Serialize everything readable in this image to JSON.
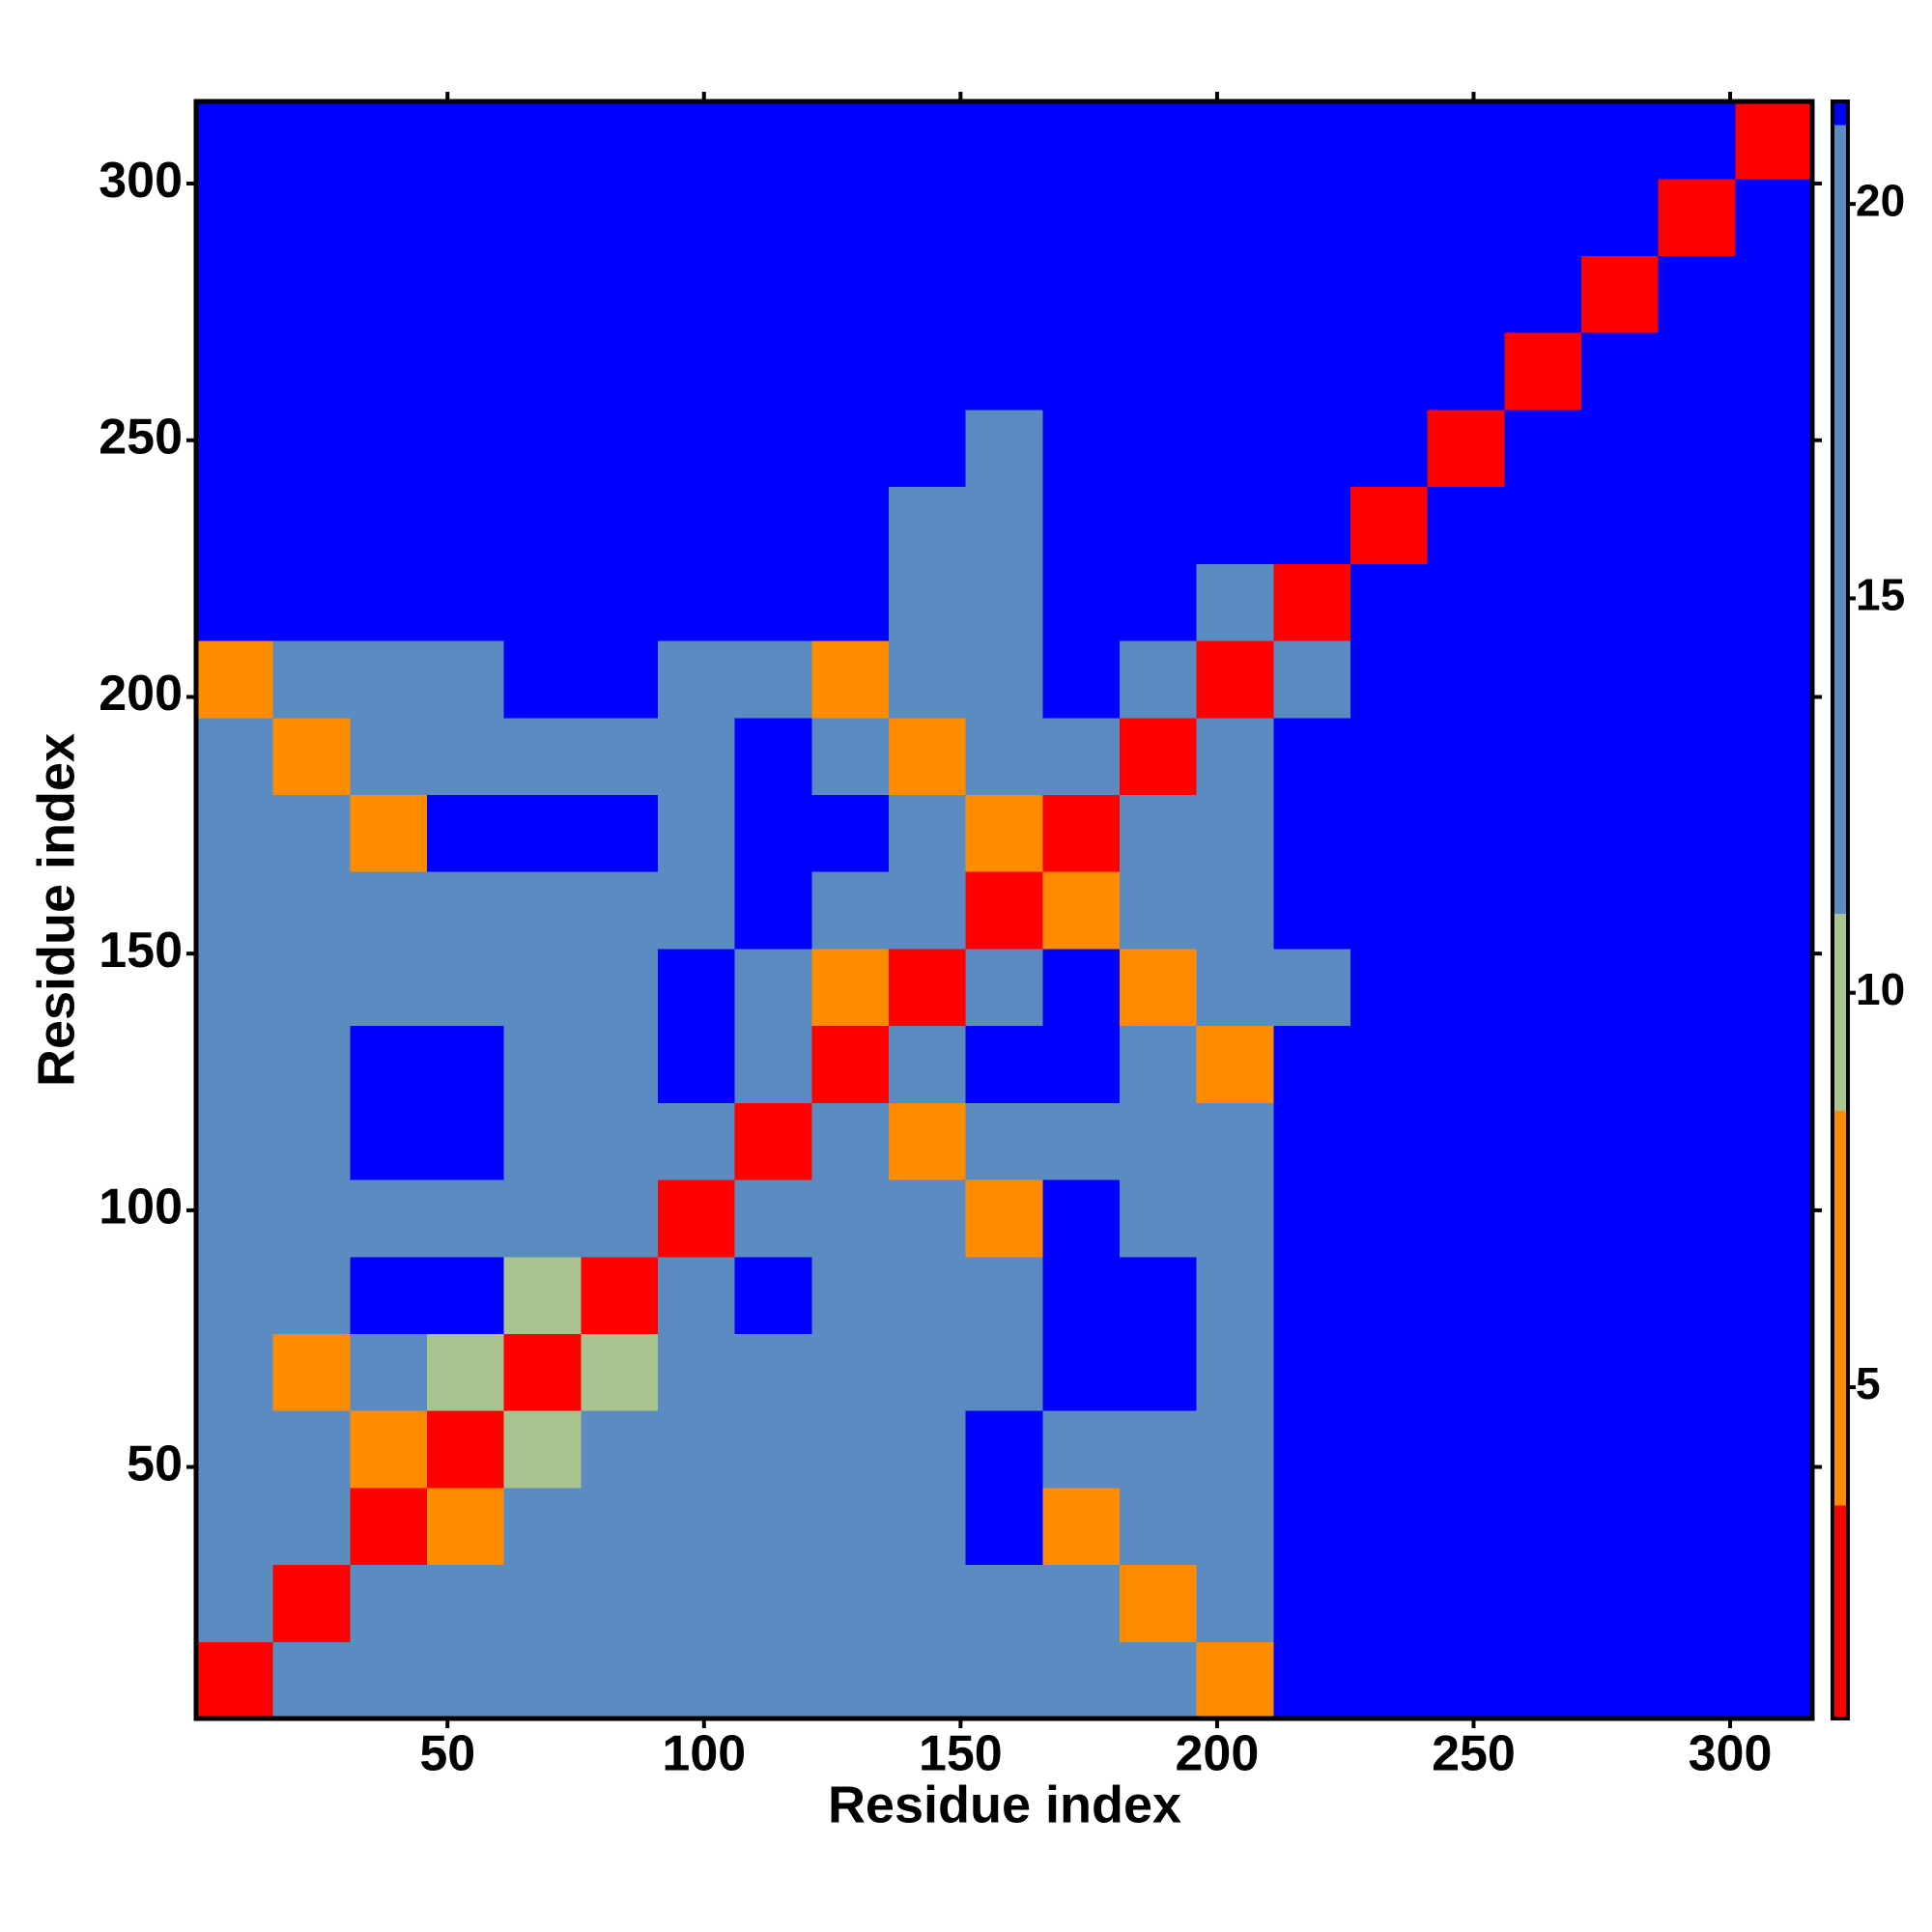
{
  "chart_data": {
    "type": "heatmap",
    "xlabel": "Residue index",
    "ylabel": "Residue index",
    "x_bins": [
      1,
      16,
      31,
      46,
      61,
      76,
      91,
      106,
      121,
      136,
      151,
      166,
      181,
      196,
      211,
      226,
      241,
      256,
      271,
      286,
      301,
      316
    ],
    "y_bins": [
      1,
      16,
      31,
      46,
      61,
      76,
      91,
      106,
      121,
      136,
      151,
      166,
      181,
      196,
      211,
      226,
      241,
      256,
      271,
      286,
      301,
      316
    ],
    "xlim": [
      1,
      316
    ],
    "ylim": [
      1,
      316
    ],
    "xticks": [
      50,
      100,
      150,
      200,
      250,
      300
    ],
    "yticks": [
      50,
      100,
      150,
      200,
      250,
      300
    ],
    "zlim": [
      0.8,
      21.3
    ],
    "zticks": [
      5,
      10,
      15,
      20
    ],
    "color_bands": [
      [
        3.5,
        "#ff0000"
      ],
      [
        8.5,
        "#ff8c00"
      ],
      [
        11,
        "#a9c48f"
      ],
      [
        21,
        "#5b8cc1"
      ],
      [
        21.3,
        "#0000ff"
      ]
    ],
    "z": [
      [
        2,
        15,
        15,
        15,
        15,
        15,
        15,
        15,
        15,
        15,
        15,
        15,
        15,
        7,
        21.2,
        21.2,
        21.2,
        21.2,
        21.2,
        21.2,
        21.2
      ],
      [
        15,
        2,
        15,
        15,
        15,
        15,
        15,
        15,
        15,
        15,
        15,
        15,
        7,
        15,
        21.2,
        21.2,
        21.2,
        21.2,
        21.2,
        21.2,
        21.2
      ],
      [
        15,
        15,
        2,
        7,
        15,
        15,
        15,
        15,
        15,
        15,
        21.2,
        7,
        15,
        15,
        21.2,
        21.2,
        21.2,
        21.2,
        21.2,
        21.2,
        21.2
      ],
      [
        15,
        15,
        7,
        2,
        10,
        15,
        15,
        15,
        15,
        15,
        21.2,
        15,
        15,
        15,
        21.2,
        21.2,
        21.2,
        21.2,
        21.2,
        21.2,
        21.2
      ],
      [
        15,
        7,
        15,
        10,
        2,
        10,
        15,
        15,
        15,
        15,
        15,
        21.2,
        21.2,
        15,
        21.2,
        21.2,
        21.2,
        21.2,
        21.2,
        21.2,
        21.2
      ],
      [
        15,
        15,
        21.2,
        21.2,
        10,
        2,
        15,
        21.2,
        15,
        15,
        15,
        21.2,
        21.2,
        15,
        21.2,
        21.2,
        21.2,
        21.2,
        21.2,
        21.2,
        21.2
      ],
      [
        15,
        15,
        15,
        15,
        15,
        15,
        2,
        15,
        15,
        15,
        7,
        21.2,
        15,
        15,
        21.2,
        21.2,
        21.2,
        21.2,
        21.2,
        21.2,
        21.2
      ],
      [
        15,
        15,
        21.2,
        21.2,
        15,
        15,
        15,
        2,
        15,
        7,
        15,
        15,
        15,
        15,
        21.2,
        21.2,
        21.2,
        21.2,
        21.2,
        21.2,
        21.2
      ],
      [
        15,
        15,
        21.2,
        21.2,
        15,
        15,
        21.2,
        15,
        2,
        15,
        21.2,
        21.2,
        15,
        7,
        21.2,
        21.2,
        21.2,
        21.2,
        21.2,
        21.2,
        21.2
      ],
      [
        15,
        15,
        15,
        15,
        15,
        15,
        21.2,
        15,
        7,
        2,
        15,
        21.2,
        7,
        15,
        15,
        21.2,
        21.2,
        21.2,
        21.2,
        21.2,
        21.2
      ],
      [
        15,
        15,
        15,
        15,
        15,
        15,
        15,
        21.2,
        15,
        15,
        2,
        7,
        15,
        15,
        21.2,
        21.2,
        21.2,
        21.2,
        21.2,
        21.2,
        21.2
      ],
      [
        15,
        15,
        7,
        21.2,
        21.2,
        21.2,
        15,
        21.2,
        21.2,
        15,
        7,
        2,
        15,
        15,
        21.2,
        21.2,
        21.2,
        21.2,
        21.2,
        21.2,
        21.2
      ],
      [
        15,
        7,
        15,
        15,
        15,
        15,
        15,
        21.2,
        15,
        7,
        15,
        15,
        2,
        15,
        21.2,
        21.2,
        21.2,
        21.2,
        21.2,
        21.2,
        21.2
      ],
      [
        7,
        15,
        15,
        15,
        21.2,
        21.2,
        15,
        15,
        7,
        15,
        15,
        21.2,
        15,
        2,
        15,
        21.2,
        21.2,
        21.2,
        21.2,
        21.2,
        21.2
      ],
      [
        21.2,
        21.2,
        21.2,
        21.2,
        21.2,
        21.2,
        21.2,
        21.2,
        21.2,
        15,
        15,
        21.2,
        21.2,
        15,
        2,
        21.2,
        21.2,
        21.2,
        21.2,
        21.2,
        21.2
      ],
      [
        21.2,
        21.2,
        21.2,
        21.2,
        21.2,
        21.2,
        21.2,
        21.2,
        21.2,
        15,
        15,
        21.2,
        21.2,
        21.2,
        21.2,
        2,
        21.2,
        21.2,
        21.2,
        21.2,
        21.2
      ],
      [
        21.2,
        21.2,
        21.2,
        21.2,
        21.2,
        21.2,
        21.2,
        21.2,
        21.2,
        21.2,
        15,
        21.2,
        21.2,
        21.2,
        21.2,
        21.2,
        2,
        21.2,
        21.2,
        21.2,
        21.2
      ],
      [
        21.2,
        21.2,
        21.2,
        21.2,
        21.2,
        21.2,
        21.2,
        21.2,
        21.2,
        21.2,
        21.2,
        21.2,
        21.2,
        21.2,
        21.2,
        21.2,
        21.2,
        2,
        21.2,
        21.2,
        21.2
      ],
      [
        21.2,
        21.2,
        21.2,
        21.2,
        21.2,
        21.2,
        21.2,
        21.2,
        21.2,
        21.2,
        21.2,
        21.2,
        21.2,
        21.2,
        21.2,
        21.2,
        21.2,
        21.2,
        2,
        21.2,
        21.2
      ],
      [
        21.2,
        21.2,
        21.2,
        21.2,
        21.2,
        21.2,
        21.2,
        21.2,
        21.2,
        21.2,
        21.2,
        21.2,
        21.2,
        21.2,
        21.2,
        21.2,
        21.2,
        21.2,
        21.2,
        2,
        21.2
      ],
      [
        21.2,
        21.2,
        21.2,
        21.2,
        21.2,
        21.2,
        21.2,
        21.2,
        21.2,
        21.2,
        21.2,
        21.2,
        21.2,
        21.2,
        21.2,
        21.2,
        21.2,
        21.2,
        21.2,
        21.2,
        2
      ]
    ]
  }
}
